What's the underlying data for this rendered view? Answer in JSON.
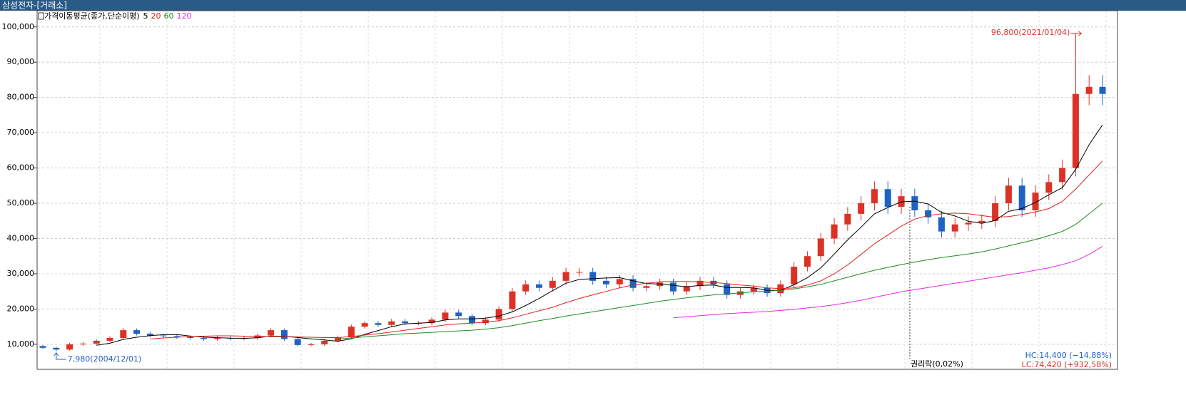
{
  "title_bar": "삼성전자-[거래소]",
  "chart_data": {
    "type": "candlestick",
    "legend_title": "가격이동평균(종가,단순이평)",
    "up_color": "#dc3226",
    "down_color": "#1f62c4",
    "candles": [
      [
        9500,
        9800,
        8700,
        9000
      ],
      [
        9000,
        9300,
        7980,
        8500
      ],
      [
        8500,
        10400,
        8200,
        10000
      ],
      [
        10000,
        10600,
        9600,
        10200
      ],
      [
        10200,
        11400,
        9800,
        11000
      ],
      [
        11000,
        12300,
        10600,
        11800
      ],
      [
        11800,
        14600,
        11300,
        14000
      ],
      [
        14000,
        14500,
        12500,
        13000
      ],
      [
        13000,
        13500,
        12000,
        12500
      ],
      [
        12500,
        13000,
        11800,
        12300
      ],
      [
        12300,
        12800,
        11500,
        12000
      ],
      [
        12000,
        12500,
        11300,
        11800
      ],
      [
        11800,
        12300,
        11000,
        11500
      ],
      [
        11500,
        12300,
        11000,
        11800
      ],
      [
        11800,
        12300,
        11100,
        11600
      ],
      [
        11600,
        12300,
        11100,
        11800
      ],
      [
        11800,
        13000,
        11300,
        12500
      ],
      [
        12500,
        14600,
        12000,
        14000
      ],
      [
        14000,
        14500,
        11000,
        11500
      ],
      [
        11500,
        12000,
        9400,
        9800
      ],
      [
        9800,
        10400,
        9400,
        10000
      ],
      [
        10000,
        11400,
        9600,
        11000
      ],
      [
        11000,
        12500,
        10600,
        12000
      ],
      [
        12000,
        15600,
        11500,
        15000
      ],
      [
        15000,
        16600,
        14400,
        16000
      ],
      [
        16000,
        16600,
        14900,
        15500
      ],
      [
        15500,
        17200,
        14900,
        16500
      ],
      [
        16500,
        17200,
        15400,
        16000
      ],
      [
        16000,
        16600,
        15400,
        16000
      ],
      [
        16000,
        17700,
        15400,
        17000
      ],
      [
        17000,
        19800,
        16300,
        19000
      ],
      [
        19000,
        19800,
        17300,
        18000
      ],
      [
        18000,
        18700,
        15400,
        16000
      ],
      [
        16000,
        17700,
        15400,
        17000
      ],
      [
        17000,
        20800,
        16300,
        20000
      ],
      [
        20000,
        26000,
        19200,
        25000
      ],
      [
        25000,
        28100,
        24000,
        27000
      ],
      [
        27000,
        28100,
        25000,
        26000
      ],
      [
        26000,
        29100,
        25000,
        28000
      ],
      [
        28000,
        31700,
        26900,
        30500
      ],
      [
        30500,
        31700,
        29300,
        30500
      ],
      [
        30500,
        31700,
        26900,
        28000
      ],
      [
        28000,
        29100,
        25900,
        27000
      ],
      [
        27000,
        29600,
        25900,
        28500
      ],
      [
        28500,
        29600,
        25000,
        26000
      ],
      [
        26000,
        27600,
        25000,
        26500
      ],
      [
        26500,
        28600,
        25400,
        27500
      ],
      [
        27500,
        28600,
        24000,
        25000
      ],
      [
        25000,
        27600,
        24000,
        26500
      ],
      [
        26500,
        29100,
        25400,
        28000
      ],
      [
        28000,
        29100,
        25900,
        27000
      ],
      [
        27000,
        28100,
        23000,
        24000
      ],
      [
        24000,
        26000,
        23000,
        25000
      ],
      [
        25000,
        27000,
        24000,
        26000
      ],
      [
        26000,
        27000,
        23500,
        24500
      ],
      [
        24500,
        28100,
        23500,
        27000
      ],
      [
        27000,
        33300,
        25900,
        32000
      ],
      [
        32000,
        36400,
        30700,
        35000
      ],
      [
        35000,
        41600,
        33600,
        40000
      ],
      [
        40000,
        45800,
        38400,
        44000
      ],
      [
        44000,
        48900,
        42200,
        47000
      ],
      [
        47000,
        52000,
        45100,
        50000
      ],
      [
        50000,
        56200,
        48000,
        54000
      ],
      [
        54000,
        56200,
        47000,
        49000
      ],
      [
        49000,
        54100,
        47000,
        52000
      ],
      [
        52000,
        54100,
        46100,
        48000
      ],
      [
        48000,
        49900,
        44200,
        46000
      ],
      [
        46000,
        47800,
        40300,
        42000
      ],
      [
        42000,
        45800,
        40300,
        44000
      ],
      [
        44000,
        46300,
        42200,
        44500
      ],
      [
        44500,
        46800,
        42700,
        45000
      ],
      [
        45000,
        52000,
        43200,
        50000
      ],
      [
        50000,
        57200,
        48000,
        55000
      ],
      [
        55000,
        57200,
        46100,
        48000
      ],
      [
        48000,
        55100,
        46100,
        53000
      ],
      [
        53000,
        58200,
        50900,
        56000
      ],
      [
        56000,
        62400,
        53800,
        60000
      ],
      [
        60000,
        96800,
        57600,
        81000
      ],
      [
        81000,
        86300,
        77800,
        83000
      ],
      [
        83000,
        86300,
        77800,
        81000
      ]
    ],
    "series": [
      {
        "name": "5",
        "color": "#000000",
        "values": [
          null,
          null,
          null,
          null,
          9740,
          10300,
          11400,
          12000,
          12460,
          12720,
          12760,
          12320,
          12020,
          11880,
          11740,
          11700,
          11840,
          12340,
          12280,
          11920,
          11560,
          11260,
          10860,
          11560,
          12800,
          13900,
          15000,
          15800,
          16000,
          16200,
          16900,
          17200,
          17200,
          17400,
          18000,
          19200,
          21000,
          23000,
          25200,
          27300,
          28400,
          28600,
          28800,
          28900,
          28000,
          27200,
          27100,
          26700,
          26300,
          26700,
          26800,
          26100,
          26100,
          26000,
          25300,
          25300,
          26900,
          28900,
          31700,
          35600,
          39600,
          43200,
          47000,
          48800,
          50400,
          50600,
          49800,
          47400,
          46400,
          44900,
          44300,
          45100,
          47700,
          48500,
          50200,
          52400,
          54400,
          59600,
          66600,
          72200
        ]
      },
      {
        "name": "20",
        "color": "#e0201c",
        "values": [
          null,
          null,
          null,
          null,
          null,
          null,
          null,
          null,
          11500,
          11800,
          12000,
          12200,
          12300,
          12400,
          12400,
          12300,
          12200,
          12200,
          12200,
          12100,
          12000,
          11900,
          11900,
          12200,
          12600,
          13000,
          13500,
          14000,
          14500,
          15000,
          15500,
          15800,
          16000,
          16300,
          16700,
          17500,
          18500,
          19500,
          20500,
          21800,
          23000,
          24000,
          25000,
          26000,
          26800,
          27300,
          27700,
          27800,
          27800,
          27700,
          27500,
          27200,
          26800,
          26500,
          26000,
          25800,
          26000,
          26800,
          28000,
          30000,
          32500,
          35500,
          38500,
          41000,
          43500,
          45500,
          46500,
          47000,
          47200,
          47000,
          46500,
          46000,
          46200,
          46800,
          47500,
          48500,
          50500,
          54000,
          58000,
          62000
        ]
      },
      {
        "name": "60",
        "color": "#1e8c1e",
        "values": [
          null,
          null,
          null,
          null,
          null,
          null,
          null,
          null,
          null,
          null,
          null,
          null,
          null,
          null,
          null,
          null,
          null,
          null,
          null,
          null,
          null,
          null,
          11500,
          11800,
          12100,
          12400,
          12700,
          13000,
          13200,
          13400,
          13600,
          13800,
          14000,
          14300,
          14700,
          15300,
          16000,
          16700,
          17300,
          18000,
          18600,
          19200,
          19800,
          20400,
          21000,
          21600,
          22200,
          22700,
          23200,
          23600,
          24000,
          24300,
          24600,
          24900,
          25100,
          25300,
          25700,
          26300,
          27000,
          28000,
          29000,
          30000,
          31000,
          31800,
          32600,
          33300,
          34000,
          34600,
          35100,
          35600,
          36200,
          37000,
          37900,
          38800,
          39700,
          40800,
          42000,
          44000,
          47000,
          50000
        ]
      },
      {
        "name": "120",
        "color": "#e826e8",
        "values": [
          null,
          null,
          null,
          null,
          null,
          null,
          null,
          null,
          null,
          null,
          null,
          null,
          null,
          null,
          null,
          null,
          null,
          null,
          null,
          null,
          null,
          null,
          null,
          null,
          null,
          null,
          null,
          null,
          null,
          null,
          null,
          null,
          null,
          null,
          null,
          null,
          null,
          null,
          null,
          null,
          null,
          null,
          null,
          null,
          null,
          null,
          null,
          17500,
          17800,
          18100,
          18400,
          18700,
          18900,
          19100,
          19300,
          19600,
          19900,
          20300,
          20700,
          21200,
          21800,
          22500,
          23300,
          24100,
          24900,
          25500,
          26100,
          26700,
          27300,
          27900,
          28500,
          29100,
          29700,
          30300,
          31000,
          31700,
          32600,
          33700,
          35500,
          37800
        ]
      }
    ],
    "ylim": [
      2900,
      104600
    ],
    "yticks": [
      {
        "value": 10000,
        "label": "10,000"
      },
      {
        "value": 20000,
        "label": "20,000"
      },
      {
        "value": 30000,
        "label": "30,000"
      },
      {
        "value": 40000,
        "label": "40,000"
      },
      {
        "value": 50000,
        "label": "50,000"
      },
      {
        "value": 60000,
        "label": "60,000"
      },
      {
        "value": 70000,
        "label": "70,000"
      },
      {
        "value": 80000,
        "label": "80,000"
      },
      {
        "value": 90000,
        "label": "90,000"
      },
      {
        "value": 100000,
        "label": "100,000"
      }
    ],
    "grid": true,
    "annotations": {
      "high": "96,800(2021/01/04)",
      "low": "7,980(2004/12/01)",
      "ex_rights": "권리락(0,02%)"
    },
    "stats": {
      "hc": "HC:14,400 (−14,88%)",
      "lc": "LC:74,420 (+932,58%)"
    }
  }
}
